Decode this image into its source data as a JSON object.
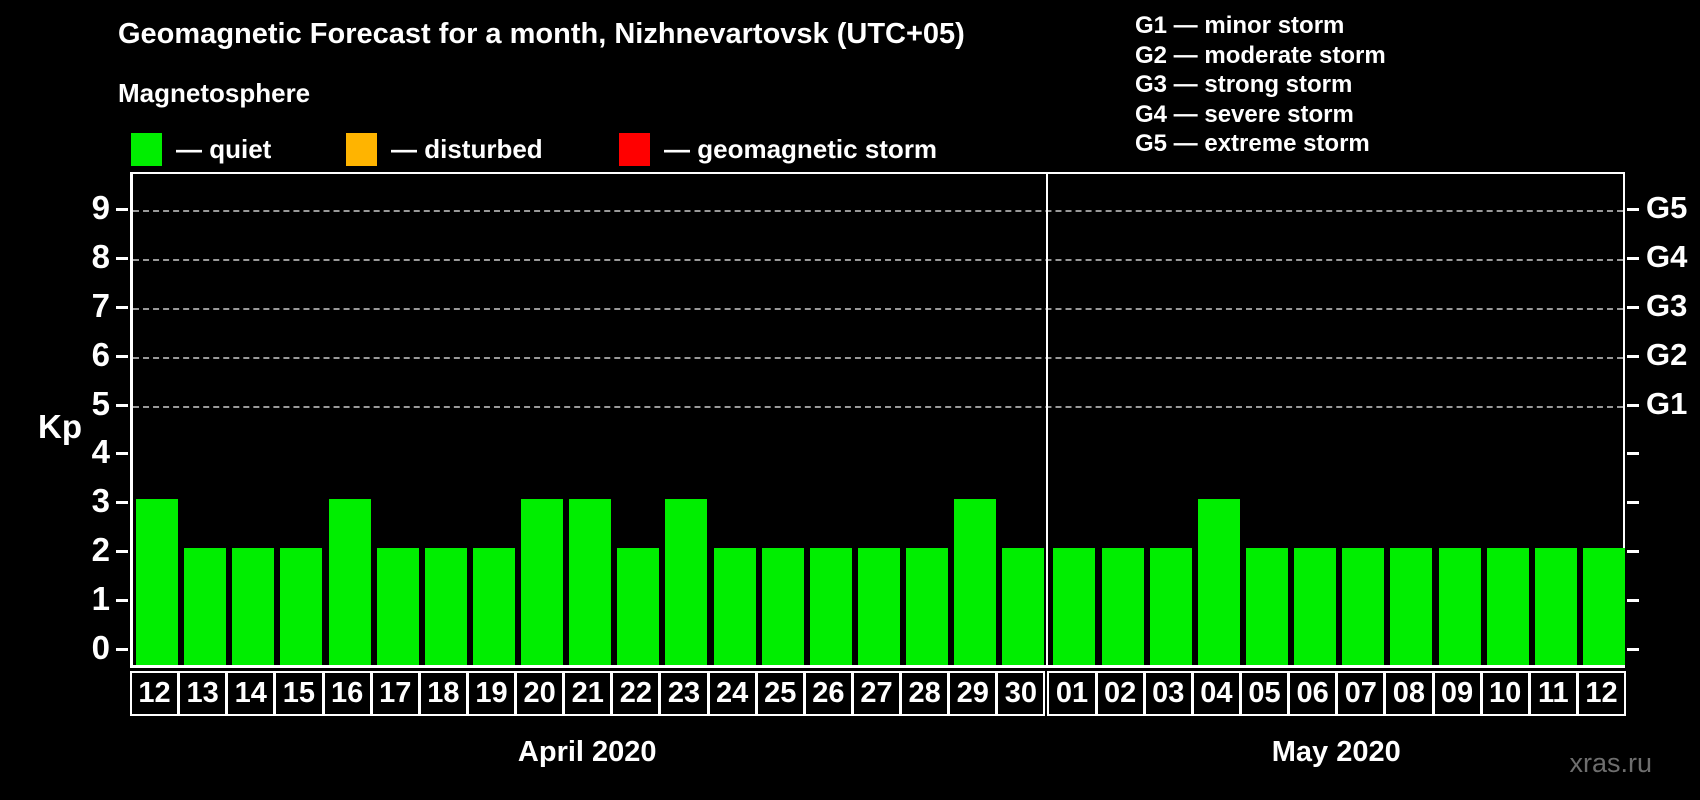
{
  "header": {
    "title": "Geomagnetic Forecast for a month, Nizhnevartovsk (UTC+05)",
    "subtitle": "Magnetosphere",
    "legend": [
      {
        "name": "quiet",
        "label": "— quiet",
        "color": "#00ee00"
      },
      {
        "name": "disturbed",
        "label": "— disturbed",
        "color": "#ffb400"
      },
      {
        "name": "geomagnetic-storm",
        "label": "— geomagnetic storm",
        "color": "#ff0000"
      }
    ],
    "g_legend": [
      {
        "label": "G1 — minor storm"
      },
      {
        "label": "G2 — moderate storm"
      },
      {
        "label": "G3 — strong storm"
      },
      {
        "label": "G4 — severe storm"
      },
      {
        "label": "G5 — extreme storm"
      }
    ]
  },
  "chart_data": {
    "type": "bar",
    "title": "Geomagnetic Forecast for a month, Nizhnevartovsk (UTC+05)",
    "ylabel": "Kp",
    "ylim": [
      0,
      9
    ],
    "yticks": [
      0,
      1,
      2,
      3,
      4,
      5,
      6,
      7,
      8,
      9
    ],
    "grid_values": [
      5,
      6,
      7,
      8,
      9
    ],
    "grid": true,
    "right_axis_labels": [
      {
        "kp": 5,
        "label": "G1"
      },
      {
        "kp": 6,
        "label": "G2"
      },
      {
        "kp": 7,
        "label": "G3"
      },
      {
        "kp": 8,
        "label": "G4"
      },
      {
        "kp": 9,
        "label": "G5"
      }
    ],
    "bar_color": "#00ee00",
    "groups": [
      {
        "label": "April 2020",
        "days": [
          "12",
          "13",
          "14",
          "15",
          "16",
          "17",
          "18",
          "19",
          "20",
          "21",
          "22",
          "23",
          "24",
          "25",
          "26",
          "27",
          "28",
          "29",
          "30"
        ],
        "values": [
          3,
          2,
          2,
          2,
          3,
          2,
          2,
          2,
          3,
          3,
          2,
          3,
          2,
          2,
          2,
          2,
          2,
          3,
          2
        ]
      },
      {
        "label": "May 2020",
        "days": [
          "01",
          "02",
          "03",
          "04",
          "05",
          "06",
          "07",
          "08",
          "09",
          "10",
          "11",
          "12"
        ],
        "values": [
          2,
          2,
          2,
          3,
          2,
          2,
          2,
          2,
          2,
          2,
          2,
          2
        ]
      }
    ]
  },
  "watermark": "xras.ru"
}
